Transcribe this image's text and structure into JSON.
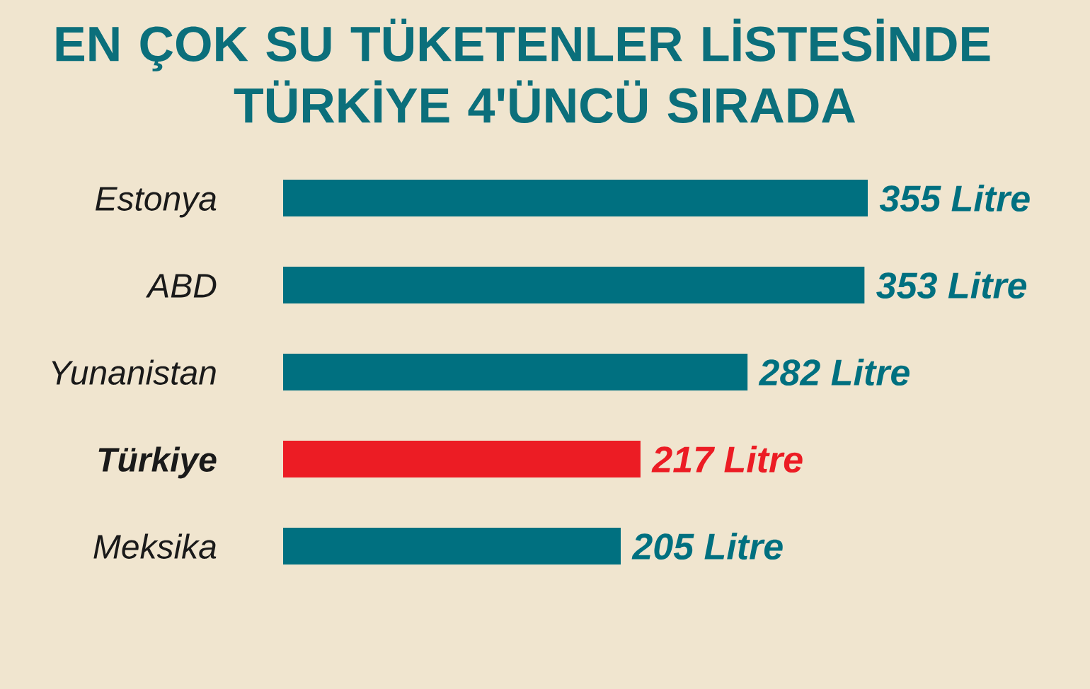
{
  "chart_data": {
    "type": "bar",
    "orientation": "horizontal",
    "title": "EN ÇOK SU TÜKETENLER LİSTESİNDE TÜRKİYE 4'ÜNCÜ SIRADA",
    "categories": [
      "Estonya",
      "ABD",
      "Yunanistan",
      "**Türkiye**",
      "Meksika"
    ],
    "values": [
      355,
      353,
      282,
      217,
      205
    ],
    "colors": [
      "#007080",
      "#007080",
      "#007080",
      "#ec1c24",
      "#007080"
    ],
    "value_labels": [
      "355 Litre",
      "353 Litre",
      "282 Litre",
      "217 Litre",
      "205 Litre"
    ],
    "tick_labels": "y"
  }
}
